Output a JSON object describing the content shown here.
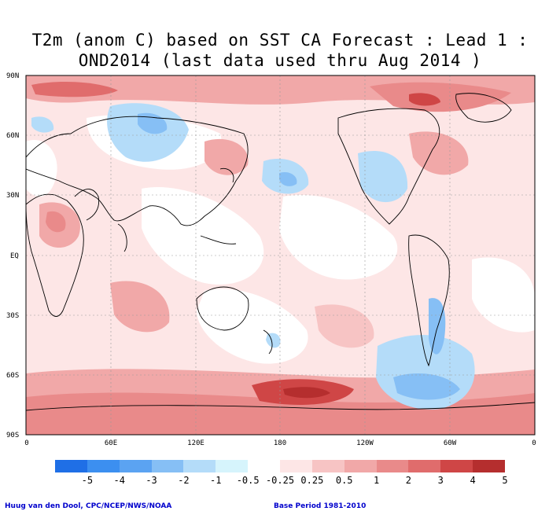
{
  "title": {
    "line1": "T2m (anom C) based on SST CA Forecast : Lead 1 :",
    "line2": "OND2014 (last data used thru Aug 2014 )"
  },
  "map": {
    "lat_labels": [
      "90N",
      "60N",
      "30N",
      "EQ",
      "30S",
      "60S",
      "90S"
    ],
    "lon_labels": [
      "0",
      "60E",
      "120E",
      "180",
      "120W",
      "60W",
      "0"
    ]
  },
  "colorbar": {
    "colors": [
      "#1f6fe6",
      "#3c8ff0",
      "#5ba3f2",
      "#86bff5",
      "#b4dcf9",
      "#d6f4fc",
      "#ffffff",
      "#fde6e6",
      "#f7c4c4",
      "#f1a8a8",
      "#e98a8a",
      "#e06c6c",
      "#cf4646",
      "#b52e2e"
    ],
    "labels": [
      "-5",
      "-4",
      "-3",
      "-2",
      "-1",
      "-0.5",
      "-0.25",
      "0.25",
      "0.5",
      "1",
      "2",
      "3",
      "4",
      "5"
    ]
  },
  "footer": {
    "left": "Huug van den Dool, CPC/NCEP/NWS/NOAA",
    "right": "Base Period 1981-2010"
  }
}
